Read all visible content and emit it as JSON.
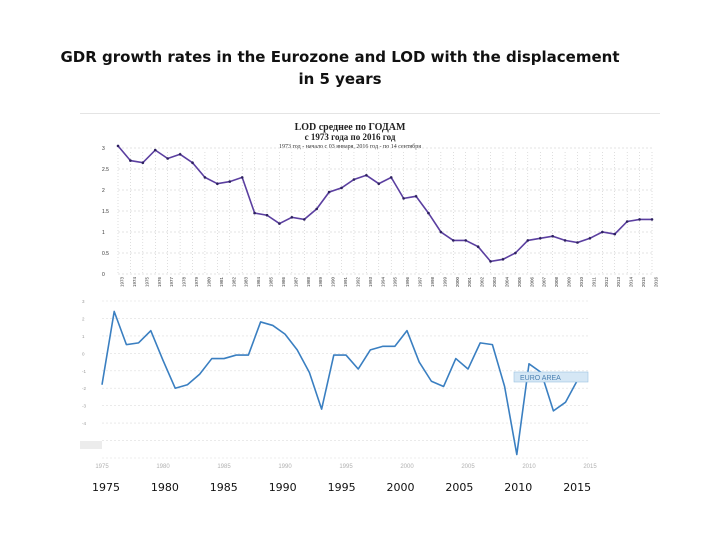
{
  "slide": {
    "title_line1": "GDR growth rates in the Eurozone and LOD with the displacement",
    "title_line2": "in 5 years"
  },
  "bottom_axis_years": [
    "1975",
    "1980",
    "1985",
    "1990",
    "1995",
    "2000",
    "2005",
    "2010",
    "2015"
  ],
  "chart_data": [
    {
      "type": "line",
      "title": "LOD среднее по ГОДАМ",
      "subtitle_line1": "с 1973 года по 2016 год",
      "subtitle_line2": "1973 год - начало с 03 января, 2016 год - по 14 сентября",
      "ylim": [
        0,
        3
      ],
      "yticks": [
        "0",
        "0.5",
        "1",
        "1.5",
        "2",
        "2.5",
        "3"
      ],
      "grid": true,
      "color": "#5b3fa0",
      "x": [
        1973,
        1974,
        1975,
        1976,
        1977,
        1978,
        1979,
        1980,
        1981,
        1982,
        1983,
        1984,
        1985,
        1986,
        1987,
        1988,
        1989,
        1990,
        1991,
        1992,
        1993,
        1994,
        1995,
        1996,
        1997,
        1998,
        1999,
        2000,
        2001,
        2002,
        2003,
        2004,
        2005,
        2006,
        2007,
        2008,
        2009,
        2010,
        2011,
        2012,
        2013,
        2014,
        2015,
        2016
      ],
      "values": [
        3.05,
        2.7,
        2.65,
        2.95,
        2.75,
        2.85,
        2.65,
        2.3,
        2.15,
        2.2,
        2.3,
        1.45,
        1.4,
        1.2,
        1.35,
        1.3,
        1.55,
        1.95,
        2.05,
        2.25,
        2.35,
        2.15,
        2.3,
        1.8,
        1.85,
        1.45,
        1.0,
        0.8,
        0.8,
        0.65,
        0.3,
        0.35,
        0.5,
        0.8,
        0.85,
        0.9,
        0.8,
        0.75,
        0.85,
        1.0,
        0.95,
        1.25,
        1.3,
        1.3
      ]
    },
    {
      "type": "line",
      "ylim": [
        -6,
        3
      ],
      "yticks": [
        "3",
        "2",
        "1",
        "0",
        "-1",
        "-2",
        "-3",
        "-4"
      ],
      "grid": true,
      "color": "#3a7fc1",
      "x_tick_labels": [
        "1975",
        "1980",
        "1985",
        "1990",
        "1995",
        "2000",
        "2005",
        "2010",
        "2015"
      ],
      "series": [
        {
          "name": "EURO AREA",
          "x": [
            1975,
            1976,
            1977,
            1978,
            1979,
            1980,
            1981,
            1982,
            1983,
            1984,
            1985,
            1986,
            1987,
            1988,
            1989,
            1990,
            1991,
            1992,
            1993,
            1994,
            1995,
            1996,
            1997,
            1998,
            1999,
            2000,
            2001,
            2002,
            2003,
            2004,
            2005,
            2006,
            2007,
            2008,
            2009,
            2010,
            2011,
            2012,
            2013,
            2014
          ],
          "values": [
            -1.8,
            2.4,
            0.5,
            0.6,
            1.3,
            -0.4,
            -2.0,
            -1.8,
            -1.2,
            -0.3,
            -0.3,
            -0.1,
            -0.1,
            1.8,
            1.6,
            1.1,
            0.2,
            -1.1,
            -3.2,
            -0.1,
            -0.1,
            -0.9,
            0.2,
            0.4,
            0.4,
            1.3,
            -0.5,
            -1.6,
            -1.9,
            -0.3,
            -0.9,
            0.6,
            0.5,
            -1.9,
            -5.8,
            -0.6,
            -1.1,
            -3.3,
            -2.8,
            -1.5
          ]
        }
      ]
    }
  ]
}
